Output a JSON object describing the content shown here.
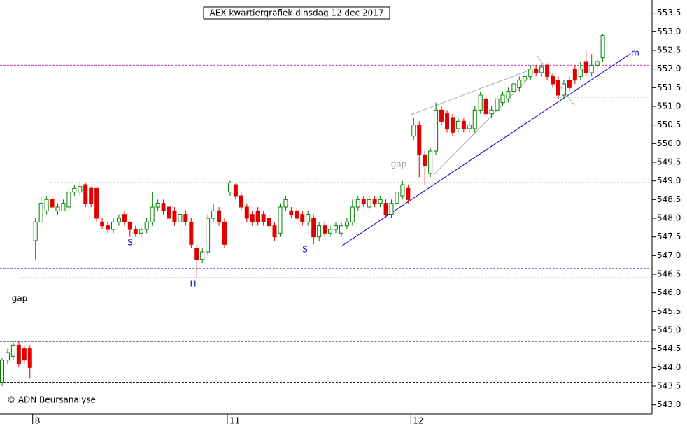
{
  "chart_data": {
    "type": "candlestick",
    "title": "AEX kwartiergrafiek dinsdag 12 dec 2017",
    "source": "© ADN Beursanalyse",
    "categories": [
      null,
      null,
      null,
      null,
      null,
      null,
      "8",
      null,
      null,
      null,
      null,
      null,
      null,
      null,
      null,
      null,
      null,
      null,
      null,
      null,
      null,
      null,
      null,
      null,
      null,
      null,
      null,
      null,
      null,
      null,
      null,
      null,
      null,
      null,
      null,
      null,
      null,
      null,
      null,
      null,
      null,
      "11",
      null,
      null,
      null,
      null,
      null,
      null,
      null,
      null,
      null,
      null,
      null,
      null,
      null,
      null,
      null,
      null,
      null,
      null,
      null,
      null,
      null,
      null,
      null,
      null,
      null,
      null,
      null,
      null,
      null,
      null,
      null,
      null,
      "12",
      null,
      null,
      null,
      null,
      null,
      null,
      null,
      null,
      null,
      null,
      null,
      null,
      null,
      null,
      null,
      null,
      null,
      null,
      null,
      null,
      null,
      null,
      null,
      null,
      null,
      null,
      null,
      null,
      null,
      null,
      null,
      null,
      null,
      null
    ],
    "open": [
      543.6,
      544.2,
      544.3,
      544.6,
      544.5,
      544.5,
      547.4,
      547.9,
      548.2,
      548.5,
      548.2,
      548.2,
      548.3,
      548.7,
      548.7,
      548.9,
      548.8,
      548.8,
      547.9,
      547.8,
      547.7,
      547.9,
      548.1,
      547.9,
      547.7,
      547.6,
      547.7,
      547.9,
      548.3,
      548.4,
      548.3,
      548.2,
      547.9,
      548.1,
      547.9,
      547.2,
      546.9,
      547.1,
      548.0,
      548.2,
      547.9,
      548.7,
      548.9,
      548.6,
      548.3,
      548.1,
      548.2,
      548.1,
      548.0,
      547.8,
      547.6,
      548.3,
      548.2,
      548.2,
      548.1,
      547.9,
      548.0,
      547.5,
      547.8,
      547.6,
      547.7,
      547.6,
      547.8,
      547.9,
      548.3,
      548.5,
      548.3,
      548.5,
      548.4,
      548.4,
      548.1,
      548.4,
      548.6,
      548.8,
      550.2,
      550.5,
      549.7,
      549.2,
      549.8,
      550.9,
      550.8,
      550.7,
      550.4,
      550.6,
      550.4,
      550.4,
      550.9,
      551.2,
      550.8,
      550.9,
      551.1,
      551.2,
      551.4,
      551.5,
      551.7,
      551.8,
      552.0,
      551.9,
      552.1,
      551.8,
      551.7,
      551.3,
      551.7,
      552.0,
      551.8,
      552.2,
      551.9,
      552.1,
      552.3
    ],
    "high": [
      544.25,
      544.5,
      544.7,
      544.7,
      544.6,
      544.6,
      548.0,
      548.6,
      548.6,
      548.6,
      548.4,
      548.5,
      548.8,
      548.9,
      548.95,
      548.95,
      548.85,
      548.8,
      548.0,
      547.9,
      548.0,
      548.1,
      548.2,
      547.9,
      547.8,
      547.8,
      548.0,
      548.7,
      548.5,
      548.5,
      548.4,
      548.3,
      548.2,
      548.2,
      548.0,
      547.3,
      547.2,
      548.1,
      548.4,
      548.3,
      548.0,
      549.0,
      548.95,
      548.7,
      548.4,
      548.2,
      548.3,
      548.2,
      548.1,
      547.9,
      548.4,
      548.6,
      548.3,
      548.3,
      548.2,
      548.2,
      548.1,
      547.9,
      547.9,
      547.8,
      547.9,
      547.9,
      548.0,
      548.5,
      548.6,
      548.6,
      548.6,
      548.6,
      548.6,
      548.5,
      548.5,
      548.8,
      549.0,
      548.9,
      550.7,
      550.6,
      549.8,
      549.9,
      551.1,
      551.0,
      550.9,
      550.8,
      550.7,
      550.7,
      550.6,
      551.0,
      551.4,
      551.3,
      551.0,
      551.3,
      551.4,
      551.5,
      551.7,
      551.8,
      551.9,
      552.1,
      552.1,
      552.15,
      552.15,
      551.9,
      551.8,
      551.7,
      551.8,
      552.1,
      552.2,
      552.5,
      552.4,
      552.3,
      552.95
    ],
    "low": [
      543.5,
      544.1,
      544.2,
      544.0,
      544.1,
      543.7,
      546.9,
      547.8,
      548.1,
      548.0,
      548.1,
      548.2,
      548.2,
      548.6,
      548.6,
      548.3,
      548.3,
      547.9,
      547.7,
      547.6,
      547.6,
      547.8,
      547.8,
      547.5,
      547.5,
      547.5,
      547.6,
      547.8,
      548.2,
      548.1,
      547.9,
      547.8,
      547.8,
      547.8,
      547.2,
      546.4,
      546.8,
      547.0,
      547.9,
      547.8,
      547.2,
      548.6,
      548.5,
      548.2,
      547.9,
      547.8,
      547.8,
      547.8,
      547.6,
      547.4,
      547.5,
      548.2,
      548.0,
      547.9,
      547.8,
      547.8,
      547.3,
      547.4,
      547.5,
      547.5,
      547.6,
      547.5,
      547.7,
      547.8,
      548.2,
      548.3,
      548.2,
      548.3,
      548.3,
      548.0,
      548.0,
      548.3,
      548.5,
      548.4,
      550.1,
      549.1,
      548.9,
      549.1,
      549.7,
      550.5,
      550.3,
      550.2,
      550.3,
      550.3,
      550.3,
      550.3,
      550.8,
      550.7,
      550.7,
      550.8,
      551.0,
      551.1,
      551.3,
      551.4,
      551.6,
      551.7,
      551.8,
      551.8,
      551.7,
      551.5,
      551.2,
      551.2,
      551.4,
      551.6,
      551.7,
      551.8,
      551.8,
      551.7,
      552.2
    ],
    "close": [
      544.2,
      544.4,
      544.6,
      544.1,
      544.2,
      544.0,
      547.9,
      548.4,
      548.5,
      548.3,
      548.3,
      548.4,
      548.7,
      548.8,
      548.85,
      548.4,
      548.4,
      548.0,
      547.8,
      547.7,
      547.9,
      548.0,
      547.9,
      547.7,
      547.6,
      547.7,
      547.9,
      548.3,
      548.4,
      548.2,
      548.0,
      547.9,
      548.1,
      547.9,
      547.3,
      546.9,
      547.1,
      548.0,
      548.2,
      547.9,
      547.3,
      548.95,
      548.6,
      548.3,
      548.0,
      547.9,
      547.9,
      547.9,
      547.8,
      547.5,
      548.3,
      548.5,
      548.1,
      548.0,
      547.9,
      548.1,
      547.5,
      547.8,
      547.6,
      547.7,
      547.8,
      547.8,
      547.9,
      548.3,
      548.5,
      548.4,
      548.5,
      548.4,
      548.5,
      548.1,
      548.4,
      548.7,
      548.9,
      548.5,
      550.5,
      549.7,
      549.4,
      549.8,
      550.9,
      550.6,
      550.4,
      550.3,
      550.6,
      550.4,
      550.5,
      550.9,
      551.3,
      550.8,
      550.9,
      551.2,
      551.3,
      551.4,
      551.6,
      551.7,
      551.8,
      552.0,
      551.9,
      552.05,
      551.8,
      551.6,
      551.3,
      551.6,
      551.5,
      551.7,
      552.0,
      551.9,
      552.1,
      552.2,
      552.9
    ],
    "up_color": "#008000",
    "down_color": "#e00000",
    "ylim": [
      542.75,
      553.85
    ],
    "yticks": [
      {
        "value": 543,
        "label": "543.0"
      },
      543.5,
      {
        "value": 544,
        "label": "544.0"
      },
      544.5,
      {
        "value": 545,
        "label": "545.0"
      },
      545.5,
      {
        "value": 546,
        "label": "546.0"
      },
      546.5,
      {
        "value": 547,
        "label": "547.0"
      },
      547.5,
      {
        "value": 548,
        "label": "548.0"
      },
      548.5,
      {
        "value": 549,
        "label": "549.0"
      },
      549.5,
      {
        "value": 550,
        "label": "550.0"
      },
      550.5,
      {
        "value": 551,
        "label": "551.0"
      },
      551.5,
      {
        "value": 552,
        "label": "552.0"
      },
      552.5,
      {
        "value": 553,
        "label": "553.0"
      },
      553.5
    ],
    "reference_lines": [
      {
        "value": 552.1,
        "color": "#cc33cc"
      },
      {
        "value": 551.25,
        "color": "#000080"
      },
      {
        "value": 548.95,
        "color": "#000000"
      },
      {
        "value": 546.65,
        "color": "#0000cc"
      },
      {
        "value": 546.4,
        "color": "#000000"
      },
      {
        "value": 544.7,
        "color": "#000000"
      },
      {
        "value": 543.6,
        "color": "#000000"
      }
    ],
    "trend_lines": [
      {
        "x": [
          61,
          113
        ],
        "y": [
          547.25,
          552.41
        ],
        "color": "#0000cc"
      },
      {
        "x": [
          73.6,
          95.9
        ],
        "y": [
          550.78,
          552.03
        ],
        "color": "#aaaaaa"
      },
      {
        "x": [
          77.6,
          95.8
        ],
        "y": [
          549.16,
          551.93
        ],
        "color": "#aaaaaa"
      },
      {
        "x": [
          96.2,
          103
        ],
        "y": [
          552.35,
          551.01
        ],
        "color": "#aaaaaa"
      }
    ],
    "annotations": [
      "gap",
      "S",
      "H",
      "S",
      "gap",
      "m"
    ]
  }
}
